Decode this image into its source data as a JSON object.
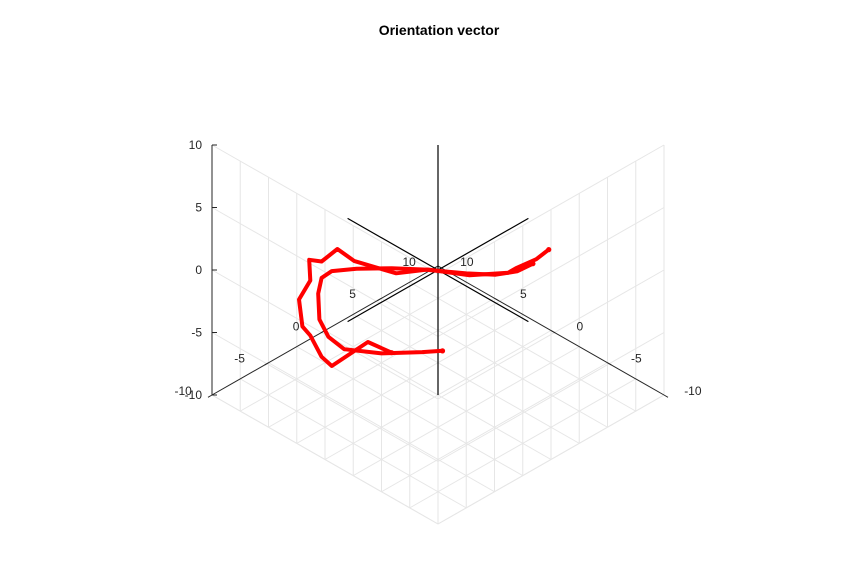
{
  "chart_data": {
    "type": "line",
    "projection": "3d",
    "title": "Orientation vector",
    "xlabel": "",
    "ylabel": "",
    "zlabel": "",
    "xlim": [
      -10,
      10
    ],
    "ylim": [
      -10,
      10
    ],
    "zlim": [
      -10,
      10
    ],
    "xticks": [
      -10,
      -5,
      0,
      5,
      10
    ],
    "yticks": [
      -10,
      -5,
      0,
      5,
      10
    ],
    "zticks": [
      -10,
      -5,
      0,
      5,
      10
    ],
    "grid": true,
    "reference_axes": {
      "color": "#000000",
      "x": [
        -8,
        8
      ],
      "y": [
        -8,
        8
      ],
      "z": [
        -10,
        10
      ]
    },
    "series": [
      {
        "color": "#ff0000",
        "x": [
          -3.9,
          -3.9,
          -3.7,
          -3.8,
          -2.1,
          0.1,
          1.4,
          4.0,
          5.3,
          6.0,
          6.1,
          6.0,
          5.9,
          5.6,
          5.9,
          5.4,
          5.4,
          4.4,
          3.1
        ],
        "y": [
          5.9,
          4.8,
          3.2,
          2.4,
          0.7,
          -0.8,
          -2.3,
          -3.4,
          -3.6,
          -4.3,
          -5.3,
          -5.3,
          -6.4,
          -6.4,
          -5.4,
          -4.9,
          -4.0,
          -1.8,
          -1.0
        ],
        "z": [
          0.6,
          0.4,
          0.4,
          0.5,
          0.3,
          0.4,
          0.2,
          0.4,
          0.8,
          -0.2,
          0.4,
          -1.2,
          -2.1,
          -4.1,
          -5.5,
          -7.2,
          -8.4,
          -7.1,
          -7.7
        ]
      },
      {
        "color": "#ff0000",
        "x": [
          -4.0,
          -3.7,
          -3.8,
          -3.4,
          -2.0,
          0.3,
          1.8,
          3.8,
          5.2,
          5.6,
          5.8,
          5.3,
          5.0,
          4.5,
          3.3,
          1.8,
          0.8
        ],
        "y": [
          4.4,
          3.3,
          2.4,
          1.7,
          0.5,
          -1.0,
          -2.3,
          -3.4,
          -4.2,
          -4.7,
          -4.8,
          -5.2,
          -4.7,
          -3.8,
          -1.7,
          0.4,
          1.2
        ],
        "z": [
          0.3,
          0.1,
          0.5,
          0.5,
          0.5,
          0.4,
          0.4,
          -0.1,
          -0.6,
          -1.1,
          -2.4,
          -4.0,
          -5.5,
          -6.7,
          -7.5,
          -7.7,
          -7.5
        ]
      }
    ]
  }
}
